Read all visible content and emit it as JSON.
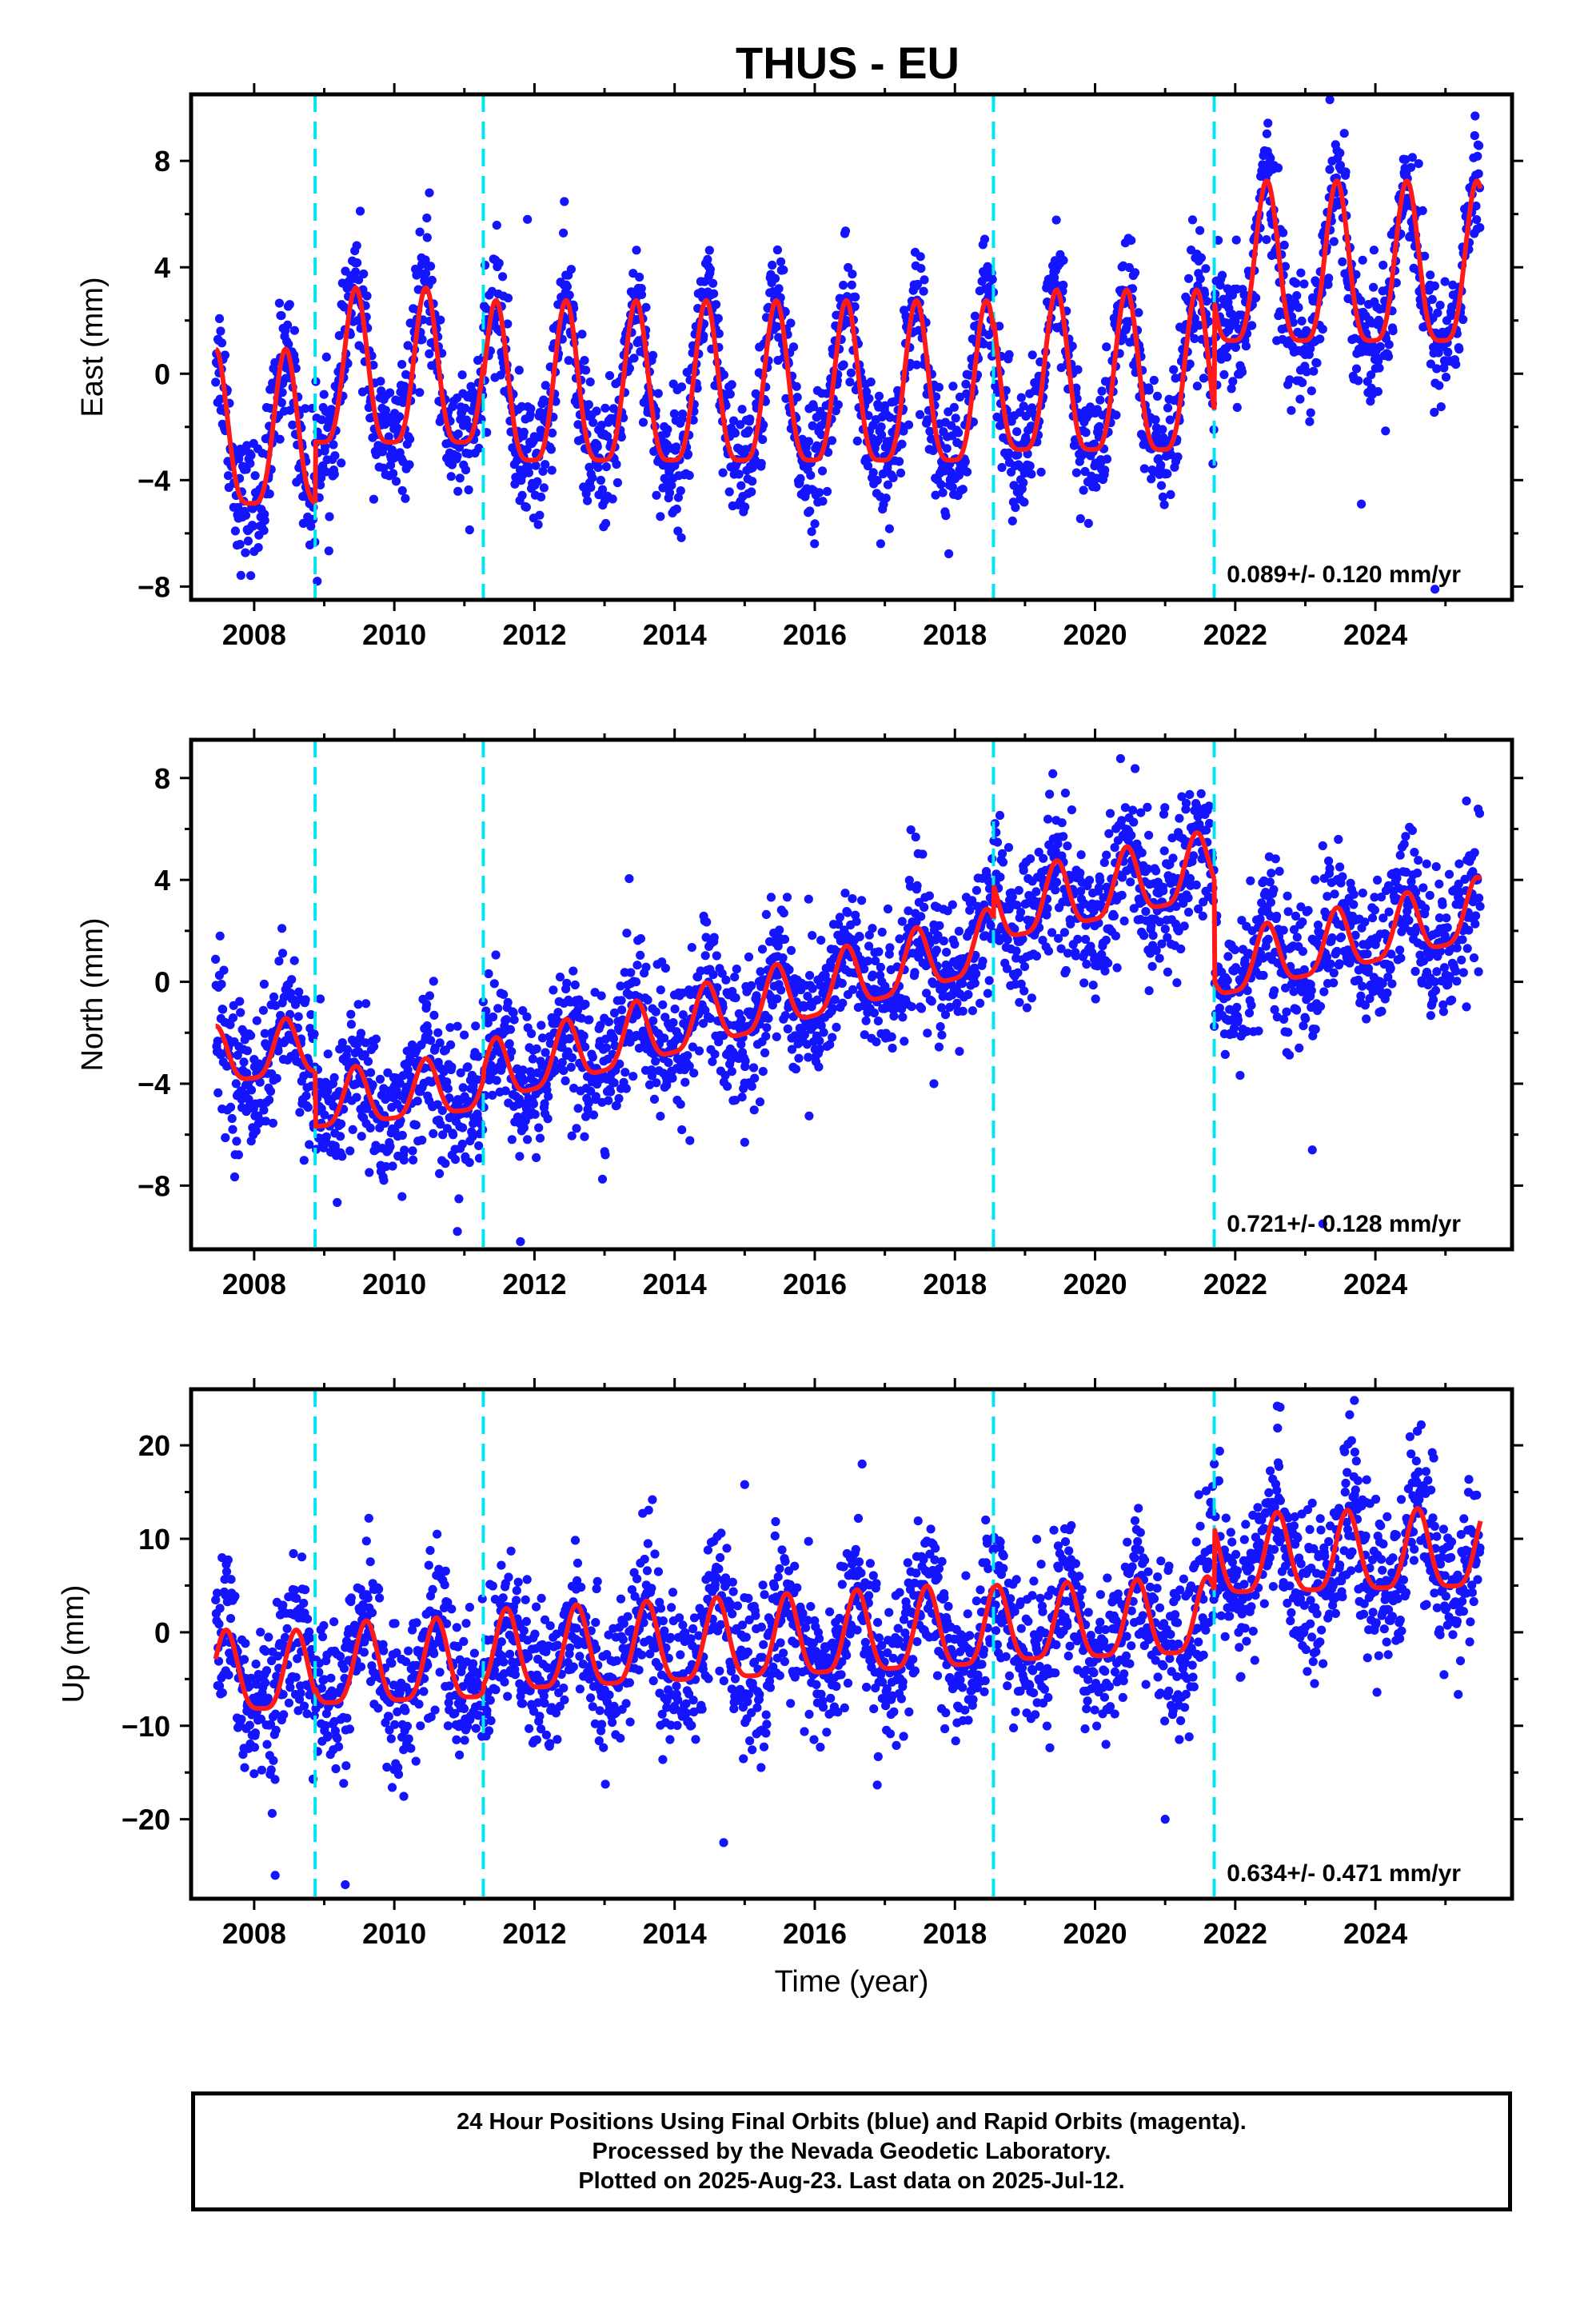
{
  "title": "THUS - EU",
  "colors": {
    "data_points": "#1414ff",
    "model_line": "#ff1a1a",
    "offset_lines": "#00e5f0",
    "axes": "#000000"
  },
  "chart_data": [
    {
      "type": "scatter",
      "panel": "east",
      "ylabel": "East (mm)",
      "xlabel": "",
      "xlim": [
        2007.1,
        2025.95
      ],
      "ylim": [
        -8.5,
        10.5
      ],
      "xticks": [
        2008,
        2010,
        2012,
        2014,
        2016,
        2018,
        2020,
        2022,
        2024
      ],
      "xtick_labels": [
        "2008",
        "2010",
        "2012",
        "2014",
        "2016",
        "2018",
        "2020",
        "2022",
        "2024"
      ],
      "yticks": [
        -8,
        -4,
        0,
        4,
        8
      ],
      "ytick_labels": [
        "−8",
        "−4",
        "0",
        "4",
        "8"
      ],
      "offset_epochs": [
        2008.87,
        2011.27,
        2018.55,
        2021.7
      ],
      "rate_annotation": "0.089+/- 0.120 mm/yr",
      "grid": false,
      "model": {
        "segments": [
          {
            "start": 2007.45,
            "end": 2008.87,
            "mean": -2.7,
            "amp": 2.9,
            "trend": 0.0
          },
          {
            "start": 2008.87,
            "end": 2011.27,
            "mean": -0.4,
            "amp": 2.9,
            "trend": 0.0
          },
          {
            "start": 2011.27,
            "end": 2018.55,
            "mean": -1.0,
            "amp": 3.0,
            "trend": 0.0
          },
          {
            "start": 2018.55,
            "end": 2021.7,
            "mean": -0.6,
            "amp": 3.0,
            "trend": 0.0
          },
          {
            "start": 2021.7,
            "end": 2025.5,
            "mean": 3.5,
            "amp": 3.0,
            "trend": 0.0
          }
        ],
        "peak_phase": 0.45
      },
      "scatter_noise_mm": 1.2,
      "outliers": [
        [
          2010.5,
          6.8
        ],
        [
          2011.9,
          5.8
        ],
        [
          2023.35,
          10.3
        ],
        [
          2023.8,
          -4.9
        ],
        [
          2024.85,
          -8.1
        ],
        [
          2008.9,
          -7.8
        ]
      ]
    },
    {
      "type": "scatter",
      "panel": "north",
      "ylabel": "North (mm)",
      "xlabel": "",
      "xlim": [
        2007.1,
        2025.95
      ],
      "ylim": [
        -10.5,
        9.5
      ],
      "xticks": [
        2008,
        2010,
        2012,
        2014,
        2016,
        2018,
        2020,
        2022,
        2024
      ],
      "xtick_labels": [
        "2008",
        "2010",
        "2012",
        "2014",
        "2016",
        "2018",
        "2020",
        "2022",
        "2024"
      ],
      "yticks": [
        -8,
        -4,
        0,
        4,
        8
      ],
      "ytick_labels": [
        "−8",
        "−4",
        "0",
        "4",
        "8"
      ],
      "offset_epochs": [
        2008.87,
        2011.27,
        2018.55,
        2021.7
      ],
      "rate_annotation": "0.721+/- 0.128 mm/yr",
      "grid": false,
      "model": {
        "segments": [
          {
            "start": 2007.45,
            "end": 2008.87,
            "mean": -2.9,
            "amp": 1.1,
            "trend": 0.3
          },
          {
            "start": 2008.87,
            "end": 2011.27,
            "mean": -4.5,
            "amp": 1.1,
            "trend": 0.3
          },
          {
            "start": 2011.27,
            "end": 2018.55,
            "mean": -1.2,
            "amp": 1.2,
            "trend": 0.72
          },
          {
            "start": 2018.55,
            "end": 2021.7,
            "mean": 3.5,
            "amp": 1.3,
            "trend": 0.55
          },
          {
            "start": 2021.7,
            "end": 2025.5,
            "mean": 1.5,
            "amp": 1.2,
            "trend": 0.6
          }
        ],
        "peak_phase": 0.45
      },
      "scatter_noise_mm": 1.4,
      "outliers": [
        [
          2010.9,
          -9.8
        ],
        [
          2011.8,
          -10.2
        ],
        [
          2015.0,
          -6.3
        ],
        [
          2017.7,
          -4.0
        ],
        [
          2023.1,
          -6.6
        ],
        [
          2023.25,
          -9.5
        ],
        [
          2025.3,
          7.1
        ]
      ]
    },
    {
      "type": "scatter",
      "panel": "up",
      "ylabel": "Up (mm)",
      "xlabel": "Time (year)",
      "xlim": [
        2007.1,
        2025.95
      ],
      "ylim": [
        -28.5,
        26.0
      ],
      "xticks": [
        2008,
        2010,
        2012,
        2014,
        2016,
        2018,
        2020,
        2022,
        2024
      ],
      "xtick_labels": [
        "2008",
        "2010",
        "2012",
        "2014",
        "2016",
        "2018",
        "2020",
        "2022",
        "2024"
      ],
      "yticks": [
        -20,
        -10,
        0,
        10,
        20
      ],
      "ytick_labels": [
        "−20",
        "−10",
        "0",
        "10",
        "20"
      ],
      "offset_epochs": [
        2008.87,
        2011.27,
        2018.55,
        2021.7
      ],
      "rate_annotation": "0.634+/- 0.471 mm/yr",
      "grid": false,
      "model": {
        "segments": [
          {
            "start": 2007.45,
            "end": 2008.87,
            "mean": -5.0,
            "amp": 4.2,
            "trend": 0.0
          },
          {
            "start": 2008.87,
            "end": 2011.27,
            "mean": -4.0,
            "amp": 4.3,
            "trend": 0.3
          },
          {
            "start": 2011.27,
            "end": 2018.55,
            "mean": -1.5,
            "amp": 4.3,
            "trend": 0.4
          },
          {
            "start": 2018.55,
            "end": 2021.7,
            "mean": 0.5,
            "amp": 4.0,
            "trend": 0.3
          },
          {
            "start": 2021.7,
            "end": 2025.5,
            "mean": 7.8,
            "amp": 4.2,
            "trend": 0.2
          }
        ],
        "peak_phase": 0.6
      },
      "scatter_noise_mm": 4.0,
      "outliers": [
        [
          2008.3,
          -26.0
        ],
        [
          2009.3,
          -27.0
        ],
        [
          2014.7,
          -22.5
        ],
        [
          2015.0,
          15.8
        ],
        [
          2021.0,
          -20.0
        ],
        [
          2022.6,
          24.2
        ],
        [
          2023.7,
          24.8
        ],
        [
          2024.6,
          21.5
        ]
      ]
    }
  ],
  "footer": {
    "line1": "24 Hour Positions Using Final Orbits (blue) and Rapid Orbits (magenta).",
    "line2": "Processed by the Nevada Geodetic Laboratory.",
    "line3": "Plotted on 2025-Aug-23. Last data on 2025-Jul-12."
  }
}
